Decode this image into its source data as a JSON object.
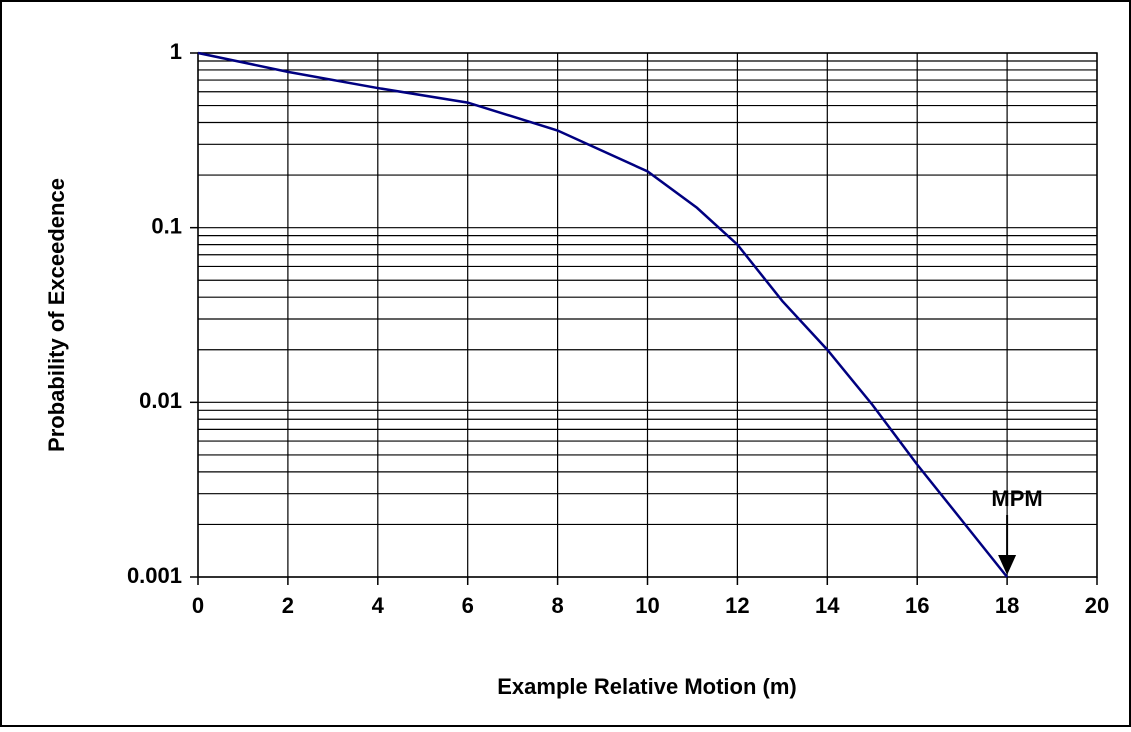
{
  "chart_data": {
    "type": "line",
    "x_label": "Example Relative Motion (m)",
    "y_label": "Probability of Exceedence",
    "x": [
      0,
      2,
      4,
      6,
      8,
      10,
      11.1,
      12,
      13,
      14,
      15,
      16,
      17,
      18
    ],
    "series": [
      {
        "color": "#000080",
        "values": [
          1,
          0.78,
          0.63,
          0.52,
          0.36,
          0.21,
          0.13,
          0.08,
          0.038,
          0.02,
          0.0097,
          0.0044,
          0.0021,
          0.001
        ]
      }
    ],
    "xlim": [
      0,
      20
    ],
    "xticks": [
      0,
      2,
      4,
      6,
      8,
      10,
      12,
      14,
      16,
      18,
      20
    ],
    "ylim": [
      0.001,
      1
    ],
    "yticks": [
      0.001,
      0.01,
      0.1,
      1
    ],
    "y_minor_ticks": [
      0.002,
      0.003,
      0.004,
      0.005,
      0.006,
      0.007,
      0.008,
      0.009,
      0.02,
      0.03,
      0.04,
      0.05,
      0.06,
      0.07,
      0.08,
      0.09,
      0.2,
      0.3,
      0.4,
      0.5,
      0.6,
      0.7,
      0.8,
      0.9
    ],
    "y_log": true,
    "grid": true,
    "annotations": [
      {
        "text": "MPM",
        "x": 18,
        "y": 0.001
      }
    ]
  }
}
